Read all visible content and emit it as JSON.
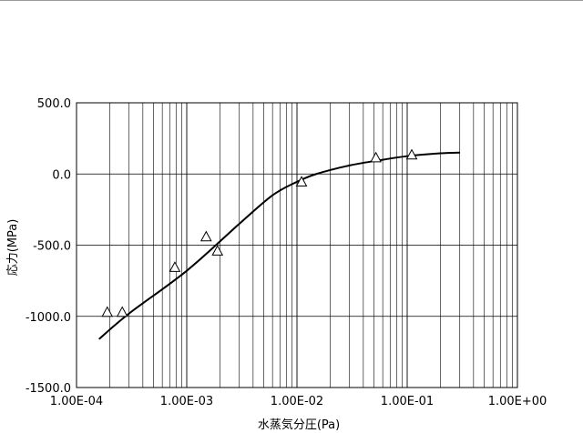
{
  "chart_data": {
    "type": "scatter",
    "xlabel": "水蒸気分圧(Pa)",
    "ylabel": "応力(MPa)",
    "x_scale": "log",
    "xlim": [
      0.0001,
      1.0
    ],
    "ylim": [
      -1500.0,
      500.0
    ],
    "x_major_ticks": [
      0.0001,
      0.001,
      0.01,
      0.1,
      1.0
    ],
    "x_tick_labels": [
      "1.00E-04",
      "1.00E-03",
      "1.00E-02",
      "1.00E-01",
      "1.00E+00"
    ],
    "y_ticks": [
      500.0,
      0.0,
      -500.0,
      -1000.0,
      -1500.0
    ],
    "y_tick_labels": [
      "500.0",
      "0.0",
      "-500.0",
      "-1000.0",
      "-1500.0"
    ],
    "grid": true,
    "marker": "open-triangle",
    "series": [
      {
        "kind": "points",
        "x": [
          0.00019,
          0.00026,
          0.00078,
          0.0015,
          0.0019,
          0.011,
          0.052,
          0.11
        ],
        "y": [
          -970,
          -970,
          -655,
          -440,
          -540,
          -55,
          115,
          135
        ]
      },
      {
        "kind": "line",
        "x": [
          0.00016,
          0.0003,
          0.001,
          0.003,
          0.006,
          0.01,
          0.015,
          0.03,
          0.06,
          0.1,
          0.2,
          0.3
        ],
        "y": [
          -1160,
          -980,
          -680,
          -350,
          -150,
          -55,
          0,
          60,
          100,
          125,
          145,
          150
        ]
      }
    ]
  }
}
